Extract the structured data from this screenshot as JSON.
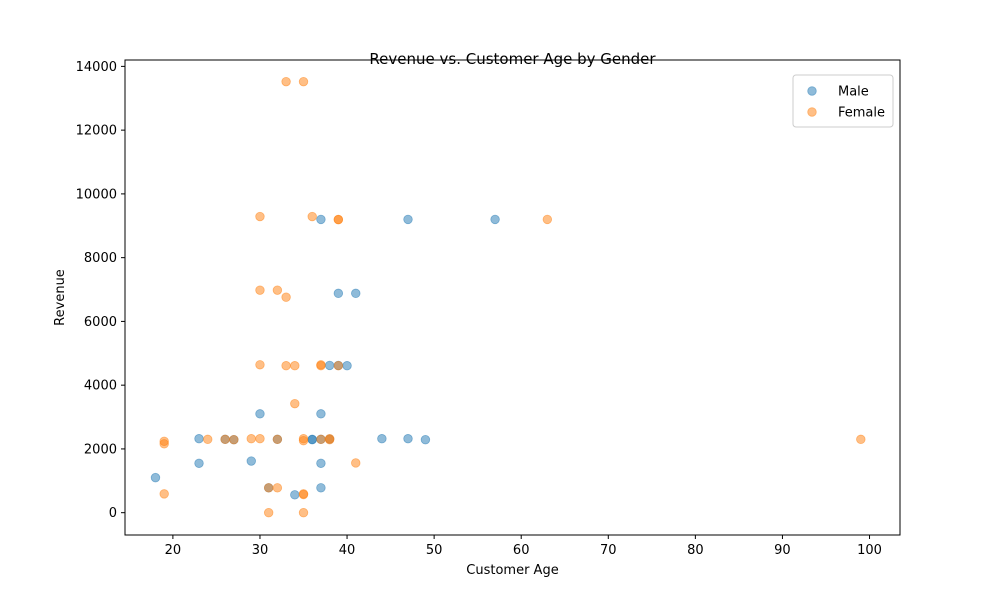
{
  "chart_data": {
    "type": "scatter",
    "title": "Revenue vs. Customer Age by Gender",
    "xlabel": "Customer Age",
    "ylabel": "Revenue",
    "xlim": [
      14.5,
      103.5
    ],
    "ylim": [
      -700,
      14200
    ],
    "x_ticks": [
      20,
      30,
      40,
      50,
      60,
      70,
      80,
      90,
      100
    ],
    "y_ticks": [
      0,
      2000,
      4000,
      6000,
      8000,
      10000,
      12000,
      14000
    ],
    "grid": false,
    "legend_position": "top-right",
    "series": [
      {
        "name": "Male",
        "color": "#1f77b4",
        "points": [
          [
            18,
            1100
          ],
          [
            23,
            2320
          ],
          [
            23,
            1550
          ],
          [
            26,
            2300
          ],
          [
            27,
            2290
          ],
          [
            29,
            1620
          ],
          [
            30,
            3100
          ],
          [
            31,
            780
          ],
          [
            32,
            2300
          ],
          [
            34,
            560
          ],
          [
            36,
            2300
          ],
          [
            36,
            2290
          ],
          [
            37,
            9200
          ],
          [
            37,
            3100
          ],
          [
            37,
            2300
          ],
          [
            37,
            1550
          ],
          [
            37,
            780
          ],
          [
            38,
            4620
          ],
          [
            38,
            2310
          ],
          [
            39,
            6880
          ],
          [
            39,
            4620
          ],
          [
            40,
            4610
          ],
          [
            41,
            6880
          ],
          [
            44,
            2320
          ],
          [
            47,
            9200
          ],
          [
            47,
            2320
          ],
          [
            49,
            2290
          ],
          [
            57,
            9200
          ]
        ]
      },
      {
        "name": "Female",
        "color": "#ff7f0e",
        "points": [
          [
            19,
            2240
          ],
          [
            19,
            2160
          ],
          [
            19,
            590
          ],
          [
            24,
            2300
          ],
          [
            26,
            2300
          ],
          [
            27,
            2290
          ],
          [
            29,
            2320
          ],
          [
            30,
            9290
          ],
          [
            30,
            6980
          ],
          [
            30,
            4640
          ],
          [
            30,
            2320
          ],
          [
            31,
            780
          ],
          [
            31,
            0
          ],
          [
            32,
            6980
          ],
          [
            32,
            2300
          ],
          [
            32,
            780
          ],
          [
            33,
            13520
          ],
          [
            33,
            6760
          ],
          [
            33,
            4610
          ],
          [
            34,
            4610
          ],
          [
            34,
            3420
          ],
          [
            35,
            13520
          ],
          [
            35,
            2320
          ],
          [
            35,
            2260
          ],
          [
            35,
            590
          ],
          [
            35,
            570
          ],
          [
            35,
            0
          ],
          [
            36,
            9290
          ],
          [
            37,
            4640
          ],
          [
            37,
            4610
          ],
          [
            37,
            2300
          ],
          [
            38,
            2320
          ],
          [
            38,
            2290
          ],
          [
            39,
            9200
          ],
          [
            39,
            9190
          ],
          [
            39,
            4610
          ],
          [
            41,
            1560
          ],
          [
            63,
            9200
          ],
          [
            99,
            2300
          ]
        ]
      }
    ]
  }
}
